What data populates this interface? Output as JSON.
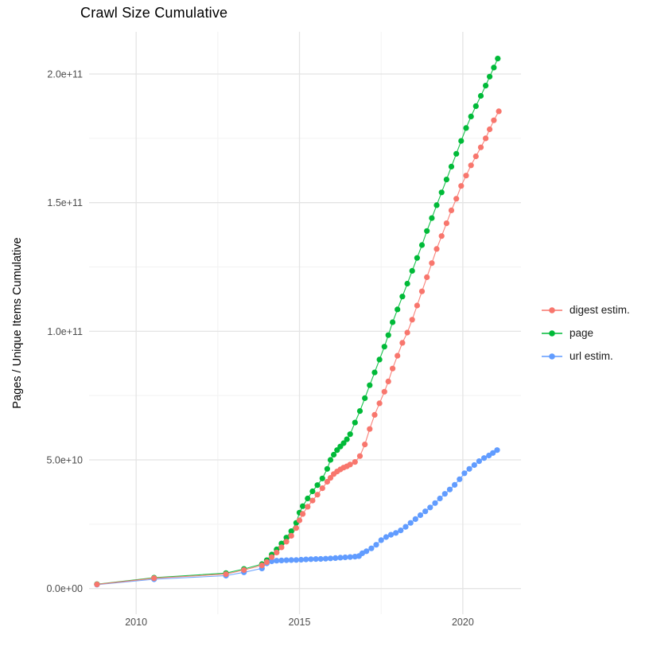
{
  "chart_data": {
    "type": "line",
    "title": "Crawl Size Cumulative",
    "xlabel": "",
    "ylabel": "Pages / Unique Items Cumulative",
    "legend_position": "right",
    "grid": true,
    "x_unit": "year",
    "value_unit": 1000000000.0,
    "xlim": [
      2008.56,
      2021.78
    ],
    "ylim": [
      -10000000000.0,
      216400000000.0
    ],
    "x_ticks": [
      {
        "value": 2010,
        "label": "2010"
      },
      {
        "value": 2015,
        "label": "2015"
      },
      {
        "value": 2020,
        "label": "2020"
      }
    ],
    "x_minor": [
      2012.5,
      2017.5
    ],
    "y_ticks": [
      {
        "value": 0,
        "label": "0.0e+00"
      },
      {
        "value": 50000000000.0,
        "label": "5.0e+10"
      },
      {
        "value": 100000000000.0,
        "label": "1.0e+11"
      },
      {
        "value": 150000000000.0,
        "label": "1.5e+11"
      },
      {
        "value": 200000000000.0,
        "label": "2.0e+11"
      }
    ],
    "y_minor": [
      25000000000.0,
      75000000000.0,
      125000000000.0,
      175000000000.0
    ],
    "colors": {
      "grid_major": "#E4E4E4",
      "grid_minor": "#F2F2F2",
      "axis_text": "#4D4D4D",
      "title_text": "#000000"
    },
    "series": [
      {
        "name": "digest estim.",
        "color": "#F8766D",
        "points_billions": [
          [
            2008.8,
            1.6
          ],
          [
            2010.55,
            4.0
          ],
          [
            2012.75,
            5.6
          ],
          [
            2013.3,
            7.2
          ],
          [
            2013.85,
            9.0
          ],
          [
            2014.0,
            10.3
          ],
          [
            2014.15,
            12.2
          ],
          [
            2014.3,
            14.0
          ],
          [
            2014.45,
            16.0
          ],
          [
            2014.6,
            18.2
          ],
          [
            2014.75,
            20.5
          ],
          [
            2014.9,
            23.5
          ],
          [
            2015.0,
            26.5
          ],
          [
            2015.1,
            29.0
          ],
          [
            2015.25,
            31.8
          ],
          [
            2015.4,
            34.2
          ],
          [
            2015.55,
            36.5
          ],
          [
            2015.7,
            39.0
          ],
          [
            2015.85,
            41.5
          ],
          [
            2015.95,
            43.0
          ],
          [
            2016.05,
            44.5
          ],
          [
            2016.15,
            45.5
          ],
          [
            2016.25,
            46.3
          ],
          [
            2016.35,
            47.0
          ],
          [
            2016.45,
            47.5
          ],
          [
            2016.55,
            48.2
          ],
          [
            2016.7,
            49.2
          ],
          [
            2016.85,
            51.5
          ],
          [
            2017.0,
            56.0
          ],
          [
            2017.15,
            62.0
          ],
          [
            2017.3,
            67.5
          ],
          [
            2017.45,
            72.0
          ],
          [
            2017.6,
            76.5
          ],
          [
            2017.72,
            80.5
          ],
          [
            2017.85,
            85.5
          ],
          [
            2018.0,
            90.5
          ],
          [
            2018.15,
            95.5
          ],
          [
            2018.3,
            99.5
          ],
          [
            2018.45,
            104.5
          ],
          [
            2018.6,
            110.0
          ],
          [
            2018.75,
            115.5
          ],
          [
            2018.9,
            121.0
          ],
          [
            2019.05,
            126.5
          ],
          [
            2019.2,
            132.0
          ],
          [
            2019.35,
            137.0
          ],
          [
            2019.5,
            142.0
          ],
          [
            2019.65,
            147.0
          ],
          [
            2019.8,
            151.5
          ],
          [
            2019.95,
            156.5
          ],
          [
            2020.1,
            160.5
          ],
          [
            2020.25,
            164.5
          ],
          [
            2020.4,
            168.0
          ],
          [
            2020.55,
            171.5
          ],
          [
            2020.7,
            175.0
          ],
          [
            2020.82,
            178.5
          ],
          [
            2020.95,
            182.0
          ],
          [
            2021.1,
            185.5
          ]
        ]
      },
      {
        "name": "page",
        "color": "#00BA38",
        "points_billions": [
          [
            2008.8,
            1.7
          ],
          [
            2010.55,
            4.2
          ],
          [
            2012.75,
            6.0
          ],
          [
            2013.3,
            7.6
          ],
          [
            2013.85,
            9.5
          ],
          [
            2014.0,
            11.0
          ],
          [
            2014.15,
            13.2
          ],
          [
            2014.3,
            15.2
          ],
          [
            2014.45,
            17.5
          ],
          [
            2014.6,
            19.8
          ],
          [
            2014.75,
            22.3
          ],
          [
            2014.9,
            25.5
          ],
          [
            2015.0,
            29.5
          ],
          [
            2015.1,
            32.0
          ],
          [
            2015.25,
            35.0
          ],
          [
            2015.4,
            37.8
          ],
          [
            2015.55,
            40.2
          ],
          [
            2015.7,
            42.8
          ],
          [
            2015.85,
            46.5
          ],
          [
            2015.95,
            50.0
          ],
          [
            2016.05,
            52.0
          ],
          [
            2016.15,
            53.8
          ],
          [
            2016.25,
            55.2
          ],
          [
            2016.35,
            56.5
          ],
          [
            2016.45,
            58.0
          ],
          [
            2016.55,
            60.0
          ],
          [
            2016.7,
            64.5
          ],
          [
            2016.85,
            69.0
          ],
          [
            2017.0,
            74.0
          ],
          [
            2017.15,
            79.0
          ],
          [
            2017.3,
            84.0
          ],
          [
            2017.45,
            89.0
          ],
          [
            2017.6,
            94.0
          ],
          [
            2017.72,
            98.5
          ],
          [
            2017.85,
            103.5
          ],
          [
            2018.0,
            108.5
          ],
          [
            2018.15,
            113.5
          ],
          [
            2018.3,
            118.5
          ],
          [
            2018.45,
            123.5
          ],
          [
            2018.6,
            128.5
          ],
          [
            2018.75,
            133.5
          ],
          [
            2018.9,
            139.0
          ],
          [
            2019.05,
            144.0
          ],
          [
            2019.2,
            149.0
          ],
          [
            2019.35,
            154.0
          ],
          [
            2019.5,
            159.0
          ],
          [
            2019.65,
            164.0
          ],
          [
            2019.8,
            169.0
          ],
          [
            2019.95,
            174.0
          ],
          [
            2020.1,
            179.0
          ],
          [
            2020.25,
            183.5
          ],
          [
            2020.4,
            187.5
          ],
          [
            2020.55,
            191.5
          ],
          [
            2020.7,
            195.5
          ],
          [
            2020.82,
            199.0
          ],
          [
            2020.95,
            202.5
          ],
          [
            2021.07,
            206.0
          ]
        ]
      },
      {
        "name": "url estim.",
        "color": "#619CFF",
        "points_billions": [
          [
            2008.8,
            1.5
          ],
          [
            2010.55,
            3.6
          ],
          [
            2012.75,
            5.0
          ],
          [
            2013.3,
            6.3
          ],
          [
            2013.85,
            7.8
          ],
          [
            2014.0,
            9.8
          ],
          [
            2014.15,
            10.6
          ],
          [
            2014.3,
            10.8
          ],
          [
            2014.45,
            10.9
          ],
          [
            2014.6,
            11.0
          ],
          [
            2014.75,
            11.05
          ],
          [
            2014.9,
            11.1
          ],
          [
            2015.05,
            11.2
          ],
          [
            2015.2,
            11.3
          ],
          [
            2015.35,
            11.4
          ],
          [
            2015.5,
            11.45
          ],
          [
            2015.65,
            11.5
          ],
          [
            2015.8,
            11.6
          ],
          [
            2015.95,
            11.7
          ],
          [
            2016.1,
            11.85
          ],
          [
            2016.25,
            12.0
          ],
          [
            2016.4,
            12.1
          ],
          [
            2016.55,
            12.25
          ],
          [
            2016.7,
            12.4
          ],
          [
            2016.82,
            12.6
          ],
          [
            2016.92,
            13.7
          ],
          [
            2017.05,
            14.5
          ],
          [
            2017.2,
            15.6
          ],
          [
            2017.35,
            17.0
          ],
          [
            2017.5,
            18.8
          ],
          [
            2017.65,
            20.0
          ],
          [
            2017.8,
            20.9
          ],
          [
            2017.95,
            21.6
          ],
          [
            2018.1,
            22.6
          ],
          [
            2018.25,
            24.0
          ],
          [
            2018.4,
            25.5
          ],
          [
            2018.55,
            27.0
          ],
          [
            2018.7,
            28.5
          ],
          [
            2018.85,
            30.0
          ],
          [
            2019.0,
            31.5
          ],
          [
            2019.15,
            33.2
          ],
          [
            2019.3,
            35.0
          ],
          [
            2019.45,
            36.8
          ],
          [
            2019.6,
            38.5
          ],
          [
            2019.75,
            40.3
          ],
          [
            2019.9,
            42.5
          ],
          [
            2020.05,
            44.8
          ],
          [
            2020.2,
            46.5
          ],
          [
            2020.35,
            48.0
          ],
          [
            2020.5,
            49.5
          ],
          [
            2020.65,
            50.7
          ],
          [
            2020.8,
            51.7
          ],
          [
            2020.92,
            52.7
          ],
          [
            2021.05,
            53.8
          ]
        ]
      }
    ]
  }
}
